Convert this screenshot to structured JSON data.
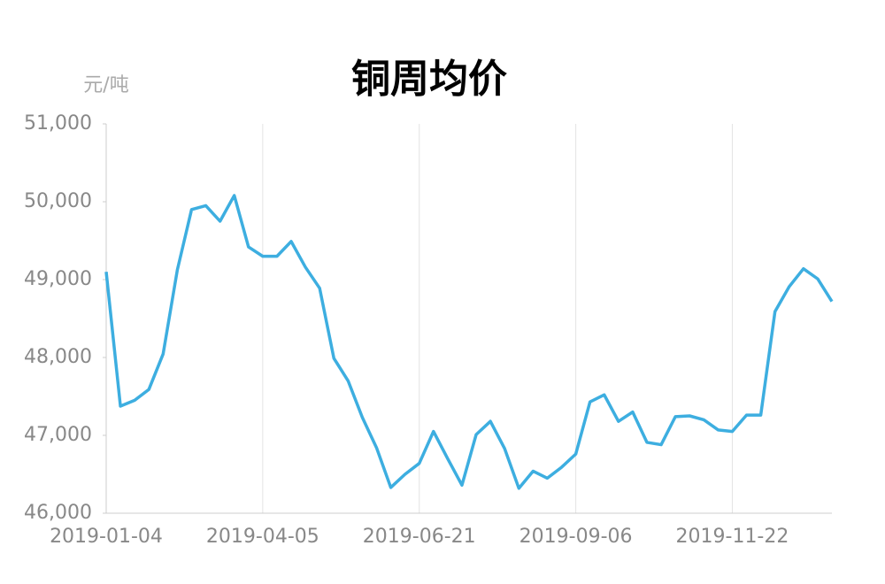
{
  "chart_data": {
    "type": "line",
    "title": "铜周均价",
    "unit_label": "元/吨",
    "categories": [
      "2019-01-04",
      null,
      null,
      null,
      null,
      null,
      null,
      null,
      null,
      null,
      null,
      "2019-04-05",
      null,
      null,
      null,
      null,
      null,
      null,
      null,
      null,
      null,
      null,
      "2019-06-21",
      null,
      null,
      null,
      null,
      null,
      null,
      null,
      null,
      null,
      null,
      "2019-09-06",
      null,
      null,
      null,
      null,
      null,
      null,
      null,
      null,
      null,
      null,
      "2019-11-22",
      null,
      null,
      null,
      null,
      null,
      null,
      null
    ],
    "series": [
      {
        "name": "铜周均价",
        "color": "#3daee0",
        "values": [
          49100,
          47375,
          47450,
          47590,
          48045,
          49125,
          49900,
          49950,
          49750,
          50080,
          49420,
          49300,
          49300,
          49490,
          49160,
          48890,
          47990,
          47700,
          47230,
          46840,
          46330,
          46500,
          46640,
          47050,
          46700,
          46360,
          47010,
          47180,
          46830,
          46320,
          46540,
          46450,
          46590,
          46760,
          47430,
          47520,
          47180,
          47300,
          46910,
          46880,
          47240,
          47250,
          47200,
          47070,
          47050,
          47260,
          47260,
          48590,
          48910,
          49140,
          49010,
          48720
        ]
      }
    ],
    "ylim": [
      46000,
      51000
    ],
    "yticks": [
      {
        "value": 46000,
        "label": "46,000"
      },
      {
        "value": 47000,
        "label": "47,000"
      },
      {
        "value": 48000,
        "label": "48,000"
      },
      {
        "value": 49000,
        "label": "49,000"
      },
      {
        "value": 50000,
        "label": "50,000"
      },
      {
        "value": 51000,
        "label": "51,000"
      }
    ],
    "grid": true
  }
}
